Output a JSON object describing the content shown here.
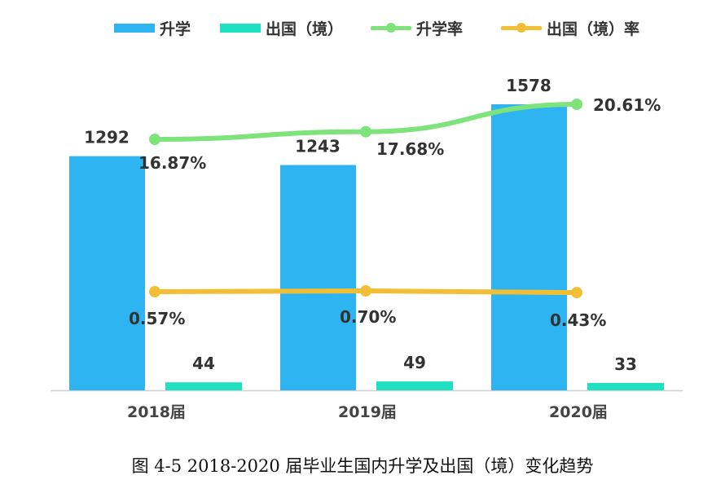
{
  "chart_data": {
    "type": "bar+line",
    "categories": [
      "2018届",
      "2019届",
      "2020届"
    ],
    "bar_series": [
      {
        "name": "升学",
        "values": [
          1292,
          1243,
          1578
        ],
        "color": "#2EB4F0"
      },
      {
        "name": "出国（境）",
        "values": [
          44,
          49,
          33
        ],
        "color": "#1FE0C0"
      }
    ],
    "line_series": [
      {
        "name": "升学率",
        "values": [
          16.87,
          17.68,
          20.61
        ],
        "labels": [
          "16.87%",
          "17.68%",
          "20.61%"
        ],
        "color": "#7DE37A"
      },
      {
        "name": "出国（境）率",
        "values": [
          0.57,
          0.7,
          0.43
        ],
        "labels": [
          "0.57%",
          "0.70%",
          "0.43%"
        ],
        "color": "#F2BE35"
      }
    ],
    "ylim_bars": [
      0,
      1800
    ],
    "ylim_lines": [
      0,
      22
    ],
    "legend_position": "top",
    "grid": false,
    "caption": "图 4-5   2018-2020 届毕业生国内升学及出国（境）变化趋势"
  }
}
